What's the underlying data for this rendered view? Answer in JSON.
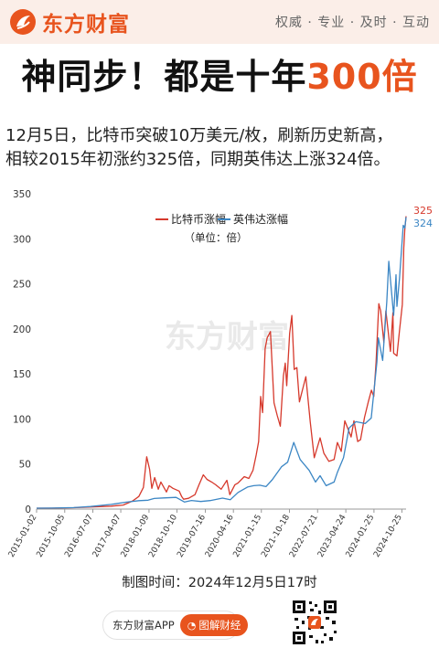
{
  "header": {
    "brand": "东方财富",
    "slogan": "权威 · 专业 · 及时 · 互动"
  },
  "headline": {
    "part1": "神同步！都是十年",
    "highlight": "300倍"
  },
  "subtext": {
    "line1": "12月5日，比特币突破10万美元/枚，刷新历史新高，",
    "line2": "相较2015年初涨约325倍，同期英伟达上涨324倍。"
  },
  "chart_data": {
    "type": "line",
    "watermark": "东方财富",
    "unit_note": "（单位：倍）",
    "ylim": [
      0,
      350
    ],
    "yticks": [
      0,
      50,
      100,
      150,
      200,
      250,
      300,
      350
    ],
    "xlim": [
      "2015-01-02",
      "2024-12-05"
    ],
    "xticks": [
      "2015-01-02",
      "2015-10-05",
      "2016-07-07",
      "2017-04-07",
      "2018-01-09",
      "2018-10-10",
      "2019-07-16",
      "2020-04-16",
      "2021-01-15",
      "2021-10-18",
      "2022-07-21",
      "2023-04-24",
      "2024-01-25",
      "2024-10-25"
    ],
    "end_labels": [
      "325",
      "324"
    ],
    "colors": {
      "btc": "#d6392c",
      "nvda": "#3b86c4",
      "axis": "#999999"
    },
    "series": [
      {
        "name": "比特币涨幅",
        "x": [
          "2015-01-02",
          "2015-06-01",
          "2016-01-01",
          "2016-06-15",
          "2017-01-01",
          "2017-05-01",
          "2017-08-01",
          "2017-10-01",
          "2017-11-15",
          "2017-12-17",
          "2018-01-15",
          "2018-02-06",
          "2018-03-05",
          "2018-04-10",
          "2018-05-05",
          "2018-06-29",
          "2018-07-25",
          "2018-09-01",
          "2018-11-01",
          "2018-11-25",
          "2018-12-15",
          "2019-02-01",
          "2019-04-05",
          "2019-05-15",
          "2019-06-26",
          "2019-08-01",
          "2019-09-15",
          "2019-10-25",
          "2019-12-18",
          "2020-02-12",
          "2020-03-12",
          "2020-04-30",
          "2020-06-01",
          "2020-08-01",
          "2020-09-15",
          "2020-10-25",
          "2020-11-25",
          "2020-12-20",
          "2021-01-08",
          "2021-01-27",
          "2021-02-21",
          "2021-03-13",
          "2021-04-14",
          "2021-05-19",
          "2021-06-20",
          "2021-07-20",
          "2021-08-20",
          "2021-09-07",
          "2021-09-21",
          "2021-10-20",
          "2021-11-10",
          "2021-12-04",
          "2021-12-30",
          "2022-01-24",
          "2022-03-28",
          "2022-05-10",
          "2022-06-18",
          "2022-08-15",
          "2022-09-20",
          "2022-11-09",
          "2022-12-30",
          "2023-01-31",
          "2023-03-10",
          "2023-04-14",
          "2023-06-15",
          "2023-07-13",
          "2023-08-18",
          "2023-09-15",
          "2023-10-25",
          "2023-11-30",
          "2023-12-31",
          "2024-01-23",
          "2024-02-15",
          "2024-03-13",
          "2024-03-31",
          "2024-05-01",
          "2024-05-21",
          "2024-07-05",
          "2024-07-29",
          "2024-08-05",
          "2024-09-06",
          "2024-10-01",
          "2024-10-29",
          "2024-11-13",
          "2024-11-22",
          "2024-12-05"
        ],
        "values": [
          1,
          1,
          1.5,
          2.3,
          3.2,
          4.5,
          9,
          14,
          24,
          58,
          44,
          23,
          35,
          22,
          30,
          19,
          26,
          23,
          20,
          14,
          11,
          12,
          16,
          27,
          38,
          33,
          30,
          27,
          22,
          32,
          16,
          27,
          29,
          36,
          34,
          43,
          60,
          75,
          125,
          107,
          178,
          190,
          197,
          118,
          104,
          92,
          148,
          162,
          137,
          195,
          215,
          155,
          157,
          119,
          147,
          97,
          57,
          79,
          62,
          53,
          55,
          74,
          64,
          98,
          80,
          98,
          75,
          77,
          102,
          119,
          132,
          125,
          163,
          228,
          220,
          185,
          220,
          175,
          218,
          173,
          170,
          198,
          227,
          290,
          310,
          325
        ]
      },
      {
        "name": "英伟达涨幅",
        "x": [
          "2015-01-02",
          "2015-06-01",
          "2016-01-01",
          "2016-06-15",
          "2017-01-01",
          "2017-06-01",
          "2017-10-01",
          "2017-12-31",
          "2018-03-01",
          "2018-06-01",
          "2018-10-01",
          "2018-12-24",
          "2019-03-01",
          "2019-06-01",
          "2019-09-01",
          "2019-12-31",
          "2020-03-16",
          "2020-06-01",
          "2020-09-01",
          "2020-11-01",
          "2020-12-31",
          "2021-03-01",
          "2021-05-01",
          "2021-08-01",
          "2021-09-30",
          "2021-11-29",
          "2022-01-31",
          "2022-04-29",
          "2022-07-01",
          "2022-08-15",
          "2022-10-13",
          "2022-12-30",
          "2023-02-01",
          "2023-04-01",
          "2023-05-26",
          "2023-07-31",
          "2023-10-31",
          "2023-12-29",
          "2024-02-23",
          "2024-03-08",
          "2024-04-19",
          "2024-05-30",
          "2024-06-18",
          "2024-08-05",
          "2024-08-28",
          "2024-09-06",
          "2024-10-01",
          "2024-11-07",
          "2024-11-22",
          "2024-12-05"
        ],
        "values": [
          1,
          1.1,
          1.6,
          2.8,
          5.2,
          7.7,
          9.3,
          9.8,
          11.8,
          12.4,
          13,
          7.8,
          9.5,
          8.4,
          9.4,
          12.2,
          10.3,
          18.5,
          24.5,
          26,
          26.5,
          25,
          32.5,
          47,
          52,
          74,
          55,
          43,
          30,
          37,
          26,
          30,
          41,
          57,
          90,
          97,
          95,
          101,
          163,
          190,
          165,
          230,
          275,
          215,
          260,
          225,
          256,
          315,
          312,
          324
        ]
      }
    ]
  },
  "footer": {
    "note": "制图时间：2024年12月5日17时",
    "app_name": "东方财富APP",
    "app_button": "图解财经"
  }
}
